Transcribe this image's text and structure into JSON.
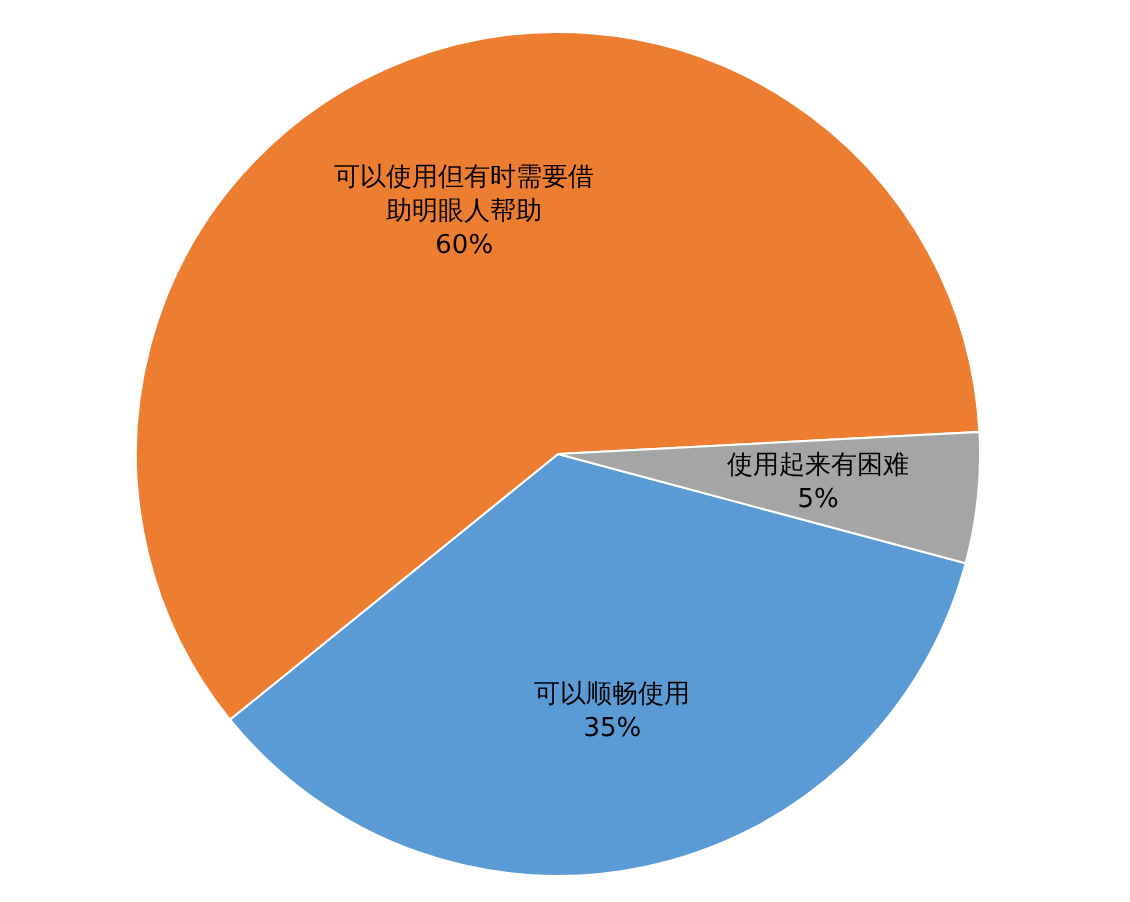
{
  "chart_data": {
    "type": "pie",
    "categories": [
      "可以顺畅使用",
      "可以使用但有时需要借助明眼人帮助",
      "使用起来有困难"
    ],
    "values": [
      35,
      60,
      5
    ],
    "value_labels": [
      "35%",
      "60%",
      "5%"
    ],
    "colors": [
      "#5b9bd5",
      "#ed7d31",
      "#a5a5a5"
    ]
  }
}
